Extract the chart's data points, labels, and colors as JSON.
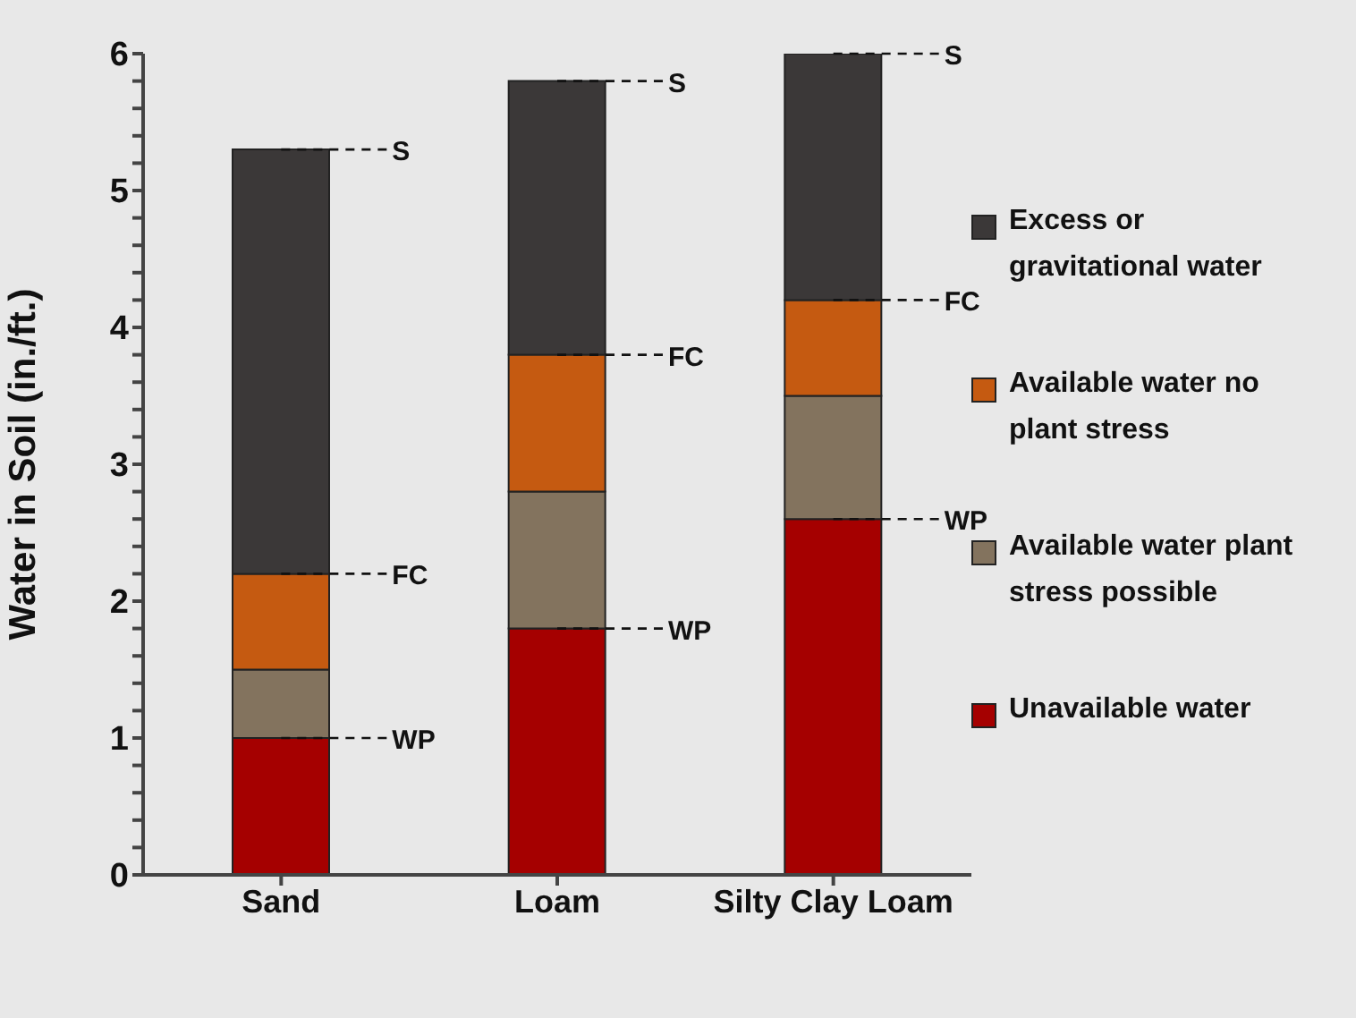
{
  "chart_data": {
    "type": "bar",
    "stacked": true,
    "ylabel": "Water in Soil (in./ft.)",
    "categories": [
      "Sand",
      "Loam",
      "Silty Clay Loam"
    ],
    "series": [
      {
        "name": "Unavailable water",
        "color": "#a50000",
        "values": [
          1.0,
          1.8,
          2.6
        ]
      },
      {
        "name": "Available water plant stress possible",
        "color": "#83735e",
        "values": [
          0.5,
          1.0,
          0.9
        ]
      },
      {
        "name": "Available water no plant stress",
        "color": "#c55a11",
        "values": [
          0.7,
          1.0,
          0.7
        ]
      },
      {
        "name": "Excess or gravitational water",
        "color": "#3b3838",
        "values": [
          3.1,
          2.0,
          1.8
        ]
      }
    ],
    "ylim": [
      0,
      6
    ],
    "yticks": [
      0,
      {
        "value": 0.2,
        "label": null
      },
      {
        "value": 0.4,
        "label": null
      },
      {
        "value": 0.6,
        "label": null
      },
      {
        "value": 0.8,
        "label": null
      },
      1,
      {
        "value": 1.2,
        "label": null
      },
      {
        "value": 1.4,
        "label": null
      },
      {
        "value": 1.6,
        "label": null
      },
      {
        "value": 1.8,
        "label": null
      },
      2,
      {
        "value": 2.2,
        "label": null
      },
      {
        "value": 2.4,
        "label": null
      },
      {
        "value": 2.6,
        "label": null
      },
      {
        "value": 2.8,
        "label": null
      },
      3,
      {
        "value": 3.2,
        "label": null
      },
      {
        "value": 3.4,
        "label": null
      },
      {
        "value": 3.6,
        "label": null
      },
      {
        "value": 3.8,
        "label": null
      },
      4,
      {
        "value": 4.2,
        "label": null
      },
      {
        "value": 4.4,
        "label": null
      },
      {
        "value": 4.6,
        "label": null
      },
      {
        "value": 4.8,
        "label": null
      },
      5,
      {
        "value": 5.2,
        "label": null
      },
      {
        "value": 5.4,
        "label": null
      },
      {
        "value": 5.6,
        "label": null
      },
      {
        "value": 5.8,
        "label": null
      },
      6
    ],
    "grid": false,
    "legend": "right",
    "annotations": [
      {
        "text": "WP",
        "x": "Sand",
        "y": 1.0
      },
      {
        "text": "FC",
        "x": "Sand",
        "y": 2.2
      },
      {
        "text": "S",
        "x": "Sand",
        "y": 5.3
      },
      {
        "text": "WP",
        "x": "Loam",
        "y": 1.8
      },
      {
        "text": "FC",
        "x": "Loam",
        "y": 3.8
      },
      {
        "text": "S",
        "x": "Loam",
        "y": 5.8
      },
      {
        "text": "WP",
        "x": "Silty Clay Loam",
        "y": 2.6
      },
      {
        "text": "FC",
        "x": "Silty Clay Loam",
        "y": 4.2
      },
      {
        "text": "S",
        "x": "Silty Clay Loam",
        "y": 6.0
      }
    ]
  }
}
